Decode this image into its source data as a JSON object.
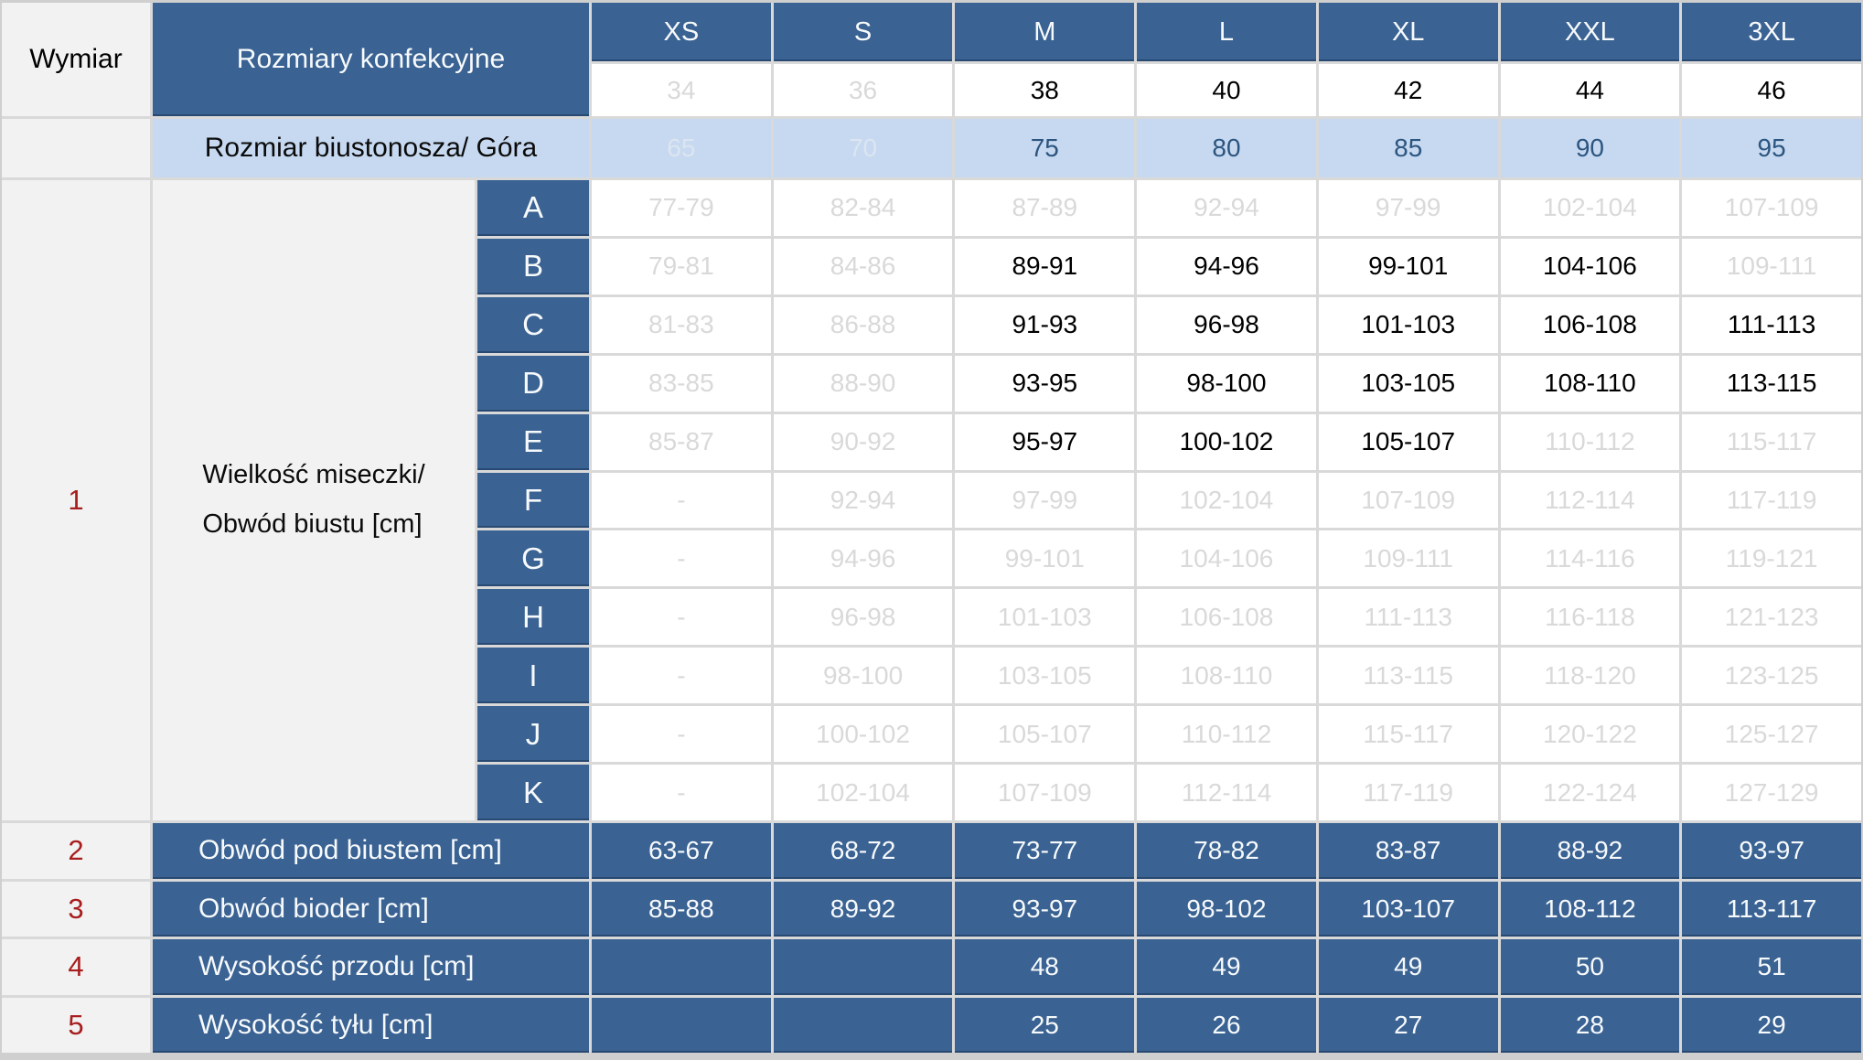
{
  "table": {
    "corner_label": "Wymiar",
    "section_label": "Rozmiary konfekcyjne",
    "sizes": [
      "XS",
      "S",
      "M",
      "L",
      "XL",
      "XXL",
      "3XL"
    ],
    "dress_sizes": [
      {
        "v": "34",
        "muted": true
      },
      {
        "v": "36",
        "muted": true
      },
      {
        "v": "38"
      },
      {
        "v": "40"
      },
      {
        "v": "42"
      },
      {
        "v": "44"
      },
      {
        "v": "46"
      }
    ],
    "bra_label": "Rozmiar biustonosza/ Góra",
    "bra_sizes": [
      {
        "v": "65",
        "faded": true
      },
      {
        "v": "70",
        "faded": true
      },
      {
        "v": "75"
      },
      {
        "v": "80"
      },
      {
        "v": "85"
      },
      {
        "v": "90"
      },
      {
        "v": "95"
      }
    ],
    "cup_section": {
      "row_number": "1",
      "label_lines": [
        "Wielkość miseczki/",
        "Obwód biustu [cm]"
      ],
      "rows": [
        {
          "cup": "A",
          "values": [
            {
              "v": "77-79",
              "muted": true
            },
            {
              "v": "82-84",
              "muted": true
            },
            {
              "v": "87-89",
              "muted": true
            },
            {
              "v": "92-94",
              "muted": true
            },
            {
              "v": "97-99",
              "muted": true
            },
            {
              "v": "102-104",
              "muted": true
            },
            {
              "v": "107-109",
              "muted": true
            }
          ]
        },
        {
          "cup": "B",
          "values": [
            {
              "v": "79-81",
              "muted": true
            },
            {
              "v": "84-86",
              "muted": true
            },
            {
              "v": "89-91"
            },
            {
              "v": "94-96"
            },
            {
              "v": "99-101"
            },
            {
              "v": "104-106"
            },
            {
              "v": "109-111",
              "muted": true
            }
          ]
        },
        {
          "cup": "C",
          "values": [
            {
              "v": "81-83",
              "muted": true
            },
            {
              "v": "86-88",
              "muted": true
            },
            {
              "v": "91-93"
            },
            {
              "v": "96-98"
            },
            {
              "v": "101-103"
            },
            {
              "v": "106-108"
            },
            {
              "v": "111-113"
            }
          ]
        },
        {
          "cup": "D",
          "values": [
            {
              "v": "83-85",
              "muted": true
            },
            {
              "v": "88-90",
              "muted": true
            },
            {
              "v": "93-95"
            },
            {
              "v": "98-100"
            },
            {
              "v": "103-105"
            },
            {
              "v": "108-110"
            },
            {
              "v": "113-115"
            }
          ]
        },
        {
          "cup": "E",
          "values": [
            {
              "v": "85-87",
              "muted": true
            },
            {
              "v": "90-92",
              "muted": true
            },
            {
              "v": "95-97"
            },
            {
              "v": "100-102"
            },
            {
              "v": "105-107"
            },
            {
              "v": "110-112",
              "muted": true
            },
            {
              "v": "115-117",
              "muted": true
            }
          ]
        },
        {
          "cup": "F",
          "values": [
            {
              "v": "-",
              "muted": true
            },
            {
              "v": "92-94",
              "muted": true
            },
            {
              "v": "97-99",
              "muted": true
            },
            {
              "v": "102-104",
              "muted": true
            },
            {
              "v": "107-109",
              "muted": true
            },
            {
              "v": "112-114",
              "muted": true
            },
            {
              "v": "117-119",
              "muted": true
            }
          ]
        },
        {
          "cup": "G",
          "values": [
            {
              "v": "-",
              "muted": true
            },
            {
              "v": "94-96",
              "muted": true
            },
            {
              "v": "99-101",
              "muted": true
            },
            {
              "v": "104-106",
              "muted": true
            },
            {
              "v": "109-111",
              "muted": true
            },
            {
              "v": "114-116",
              "muted": true
            },
            {
              "v": "119-121",
              "muted": true
            }
          ]
        },
        {
          "cup": "H",
          "values": [
            {
              "v": "-",
              "muted": true
            },
            {
              "v": "96-98",
              "muted": true
            },
            {
              "v": "101-103",
              "muted": true
            },
            {
              "v": "106-108",
              "muted": true
            },
            {
              "v": "111-113",
              "muted": true
            },
            {
              "v": "116-118",
              "muted": true
            },
            {
              "v": "121-123",
              "muted": true
            }
          ]
        },
        {
          "cup": "I",
          "values": [
            {
              "v": "-",
              "muted": true
            },
            {
              "v": "98-100",
              "muted": true
            },
            {
              "v": "103-105",
              "muted": true
            },
            {
              "v": "108-110",
              "muted": true
            },
            {
              "v": "113-115",
              "muted": true
            },
            {
              "v": "118-120",
              "muted": true
            },
            {
              "v": "123-125",
              "muted": true
            }
          ]
        },
        {
          "cup": "J",
          "values": [
            {
              "v": "-",
              "muted": true
            },
            {
              "v": "100-102",
              "muted": true
            },
            {
              "v": "105-107",
              "muted": true
            },
            {
              "v": "110-112",
              "muted": true
            },
            {
              "v": "115-117",
              "muted": true
            },
            {
              "v": "120-122",
              "muted": true
            },
            {
              "v": "125-127",
              "muted": true
            }
          ]
        },
        {
          "cup": "K",
          "values": [
            {
              "v": "-",
              "muted": true
            },
            {
              "v": "102-104",
              "muted": true
            },
            {
              "v": "107-109",
              "muted": true
            },
            {
              "v": "112-114",
              "muted": true
            },
            {
              "v": "117-119",
              "muted": true
            },
            {
              "v": "122-124",
              "muted": true
            },
            {
              "v": "127-129",
              "muted": true
            }
          ]
        }
      ]
    },
    "measure_rows": [
      {
        "num": "2",
        "label": "Obwód pod biustem [cm]",
        "values": [
          "63-67",
          "68-72",
          "73-77",
          "78-82",
          "83-87",
          "88-92",
          "93-97"
        ]
      },
      {
        "num": "3",
        "label": "Obwód bioder [cm]",
        "values": [
          "85-88",
          "89-92",
          "93-97",
          "98-102",
          "103-107",
          "108-112",
          "113-117"
        ]
      },
      {
        "num": "4",
        "label": "Wysokość przodu [cm]",
        "values": [
          "",
          "",
          "48",
          "49",
          "49",
          "50",
          "51"
        ]
      },
      {
        "num": "5",
        "label": "Wysokość tyłu [cm]",
        "values": [
          "",
          "",
          "25",
          "26",
          "27",
          "28",
          "29"
        ]
      }
    ]
  },
  "colors": {
    "dark_blue": "#3a6292",
    "light_blue": "#c6d9f0",
    "grey_cell": "#f2f2f2",
    "muted_text": "#d9d9d9",
    "faded_blue_text": "#dce5f1",
    "blue_text": "#2c5580",
    "red_text": "#a81d1d",
    "grid_line": "#d9d9d9"
  }
}
